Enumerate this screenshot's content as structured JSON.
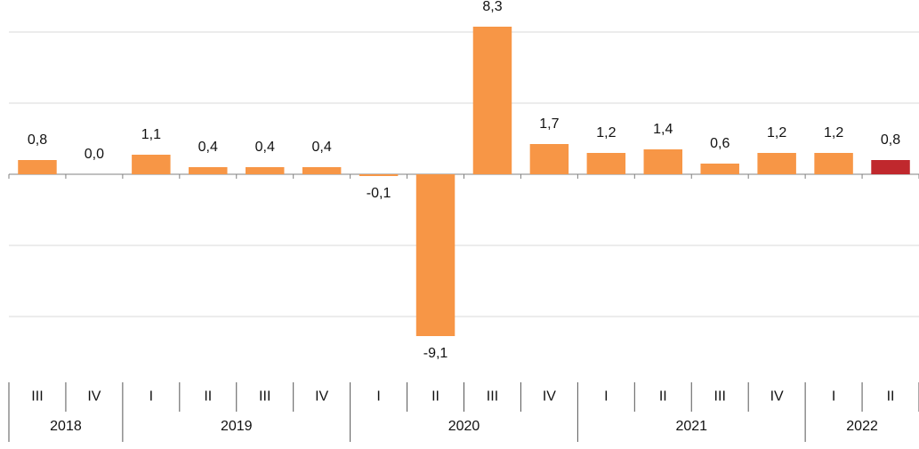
{
  "chart_data": {
    "type": "bar",
    "categories": [
      "III",
      "IV",
      "I",
      "II",
      "III",
      "IV",
      "I",
      "II",
      "III",
      "IV",
      "I",
      "II",
      "III",
      "IV",
      "I",
      "II"
    ],
    "groups": [
      {
        "label": "2018",
        "size": 2
      },
      {
        "label": "2019",
        "size": 4
      },
      {
        "label": "2020",
        "size": 4
      },
      {
        "label": "2021",
        "size": 4
      },
      {
        "label": "2022",
        "size": 2
      }
    ],
    "values": [
      0.8,
      0.0,
      1.1,
      0.4,
      0.4,
      0.4,
      -0.1,
      -9.1,
      8.3,
      1.7,
      1.2,
      1.4,
      0.6,
      1.2,
      1.2,
      0.8
    ],
    "value_labels": [
      "0,8",
      "0,0",
      "1,1",
      "0,4",
      "0,4",
      "0,4",
      "-0,1",
      "-9,1",
      "8,3",
      "1,7",
      "1,2",
      "1,4",
      "0,6",
      "1,2",
      "1,2",
      "0,8"
    ],
    "colors": [
      "#f79646",
      "#f79646",
      "#f79646",
      "#f79646",
      "#f79646",
      "#f79646",
      "#f79646",
      "#f79646",
      "#f79646",
      "#f79646",
      "#f79646",
      "#f79646",
      "#f79646",
      "#f79646",
      "#f79646",
      "#c0282d"
    ],
    "ylim": [
      -10,
      9
    ],
    "yticks": [
      -8,
      -4,
      0,
      4,
      8
    ],
    "grid": true
  }
}
